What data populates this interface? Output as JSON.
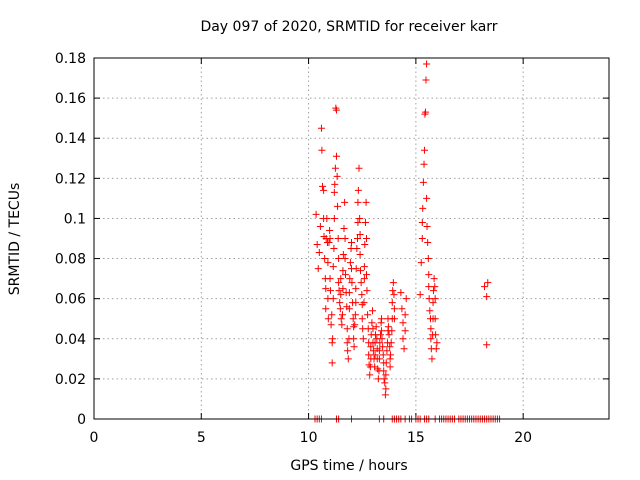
{
  "chart_data": {
    "type": "scatter",
    "title": "Day 097 of 2020, SRMTID for receiver karr",
    "xlabel": "GPS time / hours",
    "ylabel": "SRMTID / TECUs",
    "xlim": [
      0,
      24
    ],
    "ylim": [
      0,
      0.18
    ],
    "xticks": [
      0,
      5,
      10,
      15,
      20
    ],
    "xtick_labels": [
      "0",
      "5",
      "10",
      "15",
      "20"
    ],
    "yticks": [
      0,
      0.02,
      0.04,
      0.06,
      0.08,
      0.1,
      0.12,
      0.14,
      0.16,
      0.18
    ],
    "ytick_labels": [
      "0",
      "0.02",
      "0.04",
      "0.06",
      "0.08",
      "0.1",
      "0.12",
      "0.14",
      "0.16",
      "0.18"
    ],
    "grid": true,
    "marker": "+",
    "color": "#ff0000",
    "series": [
      {
        "name": "SRMTID",
        "points": [
          [
            10.3,
            0.0
          ],
          [
            10.4,
            0.0
          ],
          [
            10.5,
            0.0
          ],
          [
            10.6,
            0.0
          ],
          [
            11.3,
            0.0
          ],
          [
            11.4,
            0.0
          ],
          [
            12.0,
            0.0
          ],
          [
            13.3,
            0.0
          ],
          [
            13.5,
            0.0
          ],
          [
            13.9,
            0.0
          ],
          [
            14.0,
            0.0
          ],
          [
            14.1,
            0.0
          ],
          [
            14.2,
            0.0
          ],
          [
            14.3,
            0.0
          ],
          [
            14.5,
            0.0
          ],
          [
            14.7,
            0.0
          ],
          [
            14.8,
            0.0
          ],
          [
            15.0,
            0.0
          ],
          [
            15.1,
            0.0
          ],
          [
            15.2,
            0.0
          ],
          [
            15.4,
            0.0
          ],
          [
            15.5,
            0.0
          ],
          [
            15.6,
            0.0
          ],
          [
            15.9,
            0.0
          ],
          [
            16.1,
            0.0
          ],
          [
            16.2,
            0.0
          ],
          [
            16.3,
            0.0
          ],
          [
            16.4,
            0.0
          ],
          [
            16.5,
            0.0
          ],
          [
            16.6,
            0.0
          ],
          [
            16.7,
            0.0
          ],
          [
            16.8,
            0.0
          ],
          [
            17.0,
            0.0
          ],
          [
            17.1,
            0.0
          ],
          [
            17.2,
            0.0
          ],
          [
            17.3,
            0.0
          ],
          [
            17.4,
            0.0
          ],
          [
            17.5,
            0.0
          ],
          [
            17.6,
            0.0
          ],
          [
            17.7,
            0.0
          ],
          [
            17.8,
            0.0
          ],
          [
            17.9,
            0.0
          ],
          [
            18.0,
            0.0
          ],
          [
            18.1,
            0.0
          ],
          [
            18.2,
            0.0
          ],
          [
            18.3,
            0.0
          ],
          [
            18.4,
            0.0
          ],
          [
            18.5,
            0.0
          ],
          [
            18.6,
            0.0
          ],
          [
            18.7,
            0.0
          ],
          [
            18.8,
            0.0
          ],
          [
            18.9,
            0.0
          ],
          [
            10.35,
            0.102
          ],
          [
            10.4,
            0.087
          ],
          [
            10.45,
            0.075
          ],
          [
            10.5,
            0.083
          ],
          [
            10.55,
            0.096
          ],
          [
            10.6,
            0.145
          ],
          [
            10.62,
            0.134
          ],
          [
            10.65,
            0.116
          ],
          [
            10.7,
            0.114
          ],
          [
            10.7,
            0.1
          ],
          [
            10.72,
            0.091
          ],
          [
            10.75,
            0.08
          ],
          [
            10.78,
            0.07
          ],
          [
            10.8,
            0.065
          ],
          [
            10.8,
            0.055
          ],
          [
            10.82,
            0.09
          ],
          [
            10.85,
            0.1
          ],
          [
            10.88,
            0.088
          ],
          [
            10.9,
            0.078
          ],
          [
            10.9,
            0.06
          ],
          [
            10.92,
            0.05
          ],
          [
            10.95,
            0.088
          ],
          [
            10.98,
            0.094
          ],
          [
            11.0,
            0.09
          ],
          [
            11.0,
            0.07
          ],
          [
            11.02,
            0.064
          ],
          [
            11.05,
            0.047
          ],
          [
            11.08,
            0.052
          ],
          [
            11.1,
            0.038
          ],
          [
            11.1,
            0.028
          ],
          [
            11.12,
            0.04
          ],
          [
            11.15,
            0.06
          ],
          [
            11.15,
            0.076
          ],
          [
            11.18,
            0.085
          ],
          [
            11.2,
            0.1
          ],
          [
            11.2,
            0.113
          ],
          [
            11.22,
            0.117
          ],
          [
            11.25,
            0.125
          ],
          [
            11.27,
            0.155
          ],
          [
            11.3,
            0.154
          ],
          [
            11.3,
            0.131
          ],
          [
            11.33,
            0.121
          ],
          [
            11.35,
            0.106
          ],
          [
            11.38,
            0.09
          ],
          [
            11.4,
            0.08
          ],
          [
            11.4,
            0.068
          ],
          [
            11.42,
            0.064
          ],
          [
            11.45,
            0.058
          ],
          [
            11.48,
            0.055
          ],
          [
            11.5,
            0.07
          ],
          [
            11.5,
            0.062
          ],
          [
            11.52,
            0.05
          ],
          [
            11.55,
            0.047
          ],
          [
            11.58,
            0.052
          ],
          [
            11.6,
            0.065
          ],
          [
            11.6,
            0.074
          ],
          [
            11.62,
            0.082
          ],
          [
            11.65,
            0.095
          ],
          [
            11.68,
            0.108
          ],
          [
            11.7,
            0.09
          ],
          [
            11.7,
            0.08
          ],
          [
            11.72,
            0.072
          ],
          [
            11.75,
            0.063
          ],
          [
            11.78,
            0.056
          ],
          [
            11.8,
            0.045
          ],
          [
            11.8,
            0.038
          ],
          [
            11.82,
            0.034
          ],
          [
            11.85,
            0.03
          ],
          [
            11.88,
            0.04
          ],
          [
            11.9,
            0.055
          ],
          [
            11.9,
            0.063
          ],
          [
            11.92,
            0.07
          ],
          [
            11.95,
            0.078
          ],
          [
            11.98,
            0.085
          ],
          [
            12.0,
            0.088
          ],
          [
            12.0,
            0.075
          ],
          [
            12.02,
            0.068
          ],
          [
            12.05,
            0.058
          ],
          [
            12.08,
            0.05
          ],
          [
            12.1,
            0.046
          ],
          [
            12.1,
            0.04
          ],
          [
            12.12,
            0.036
          ],
          [
            12.15,
            0.047
          ],
          [
            12.18,
            0.052
          ],
          [
            12.2,
            0.058
          ],
          [
            12.2,
            0.065
          ],
          [
            12.22,
            0.075
          ],
          [
            12.25,
            0.085
          ],
          [
            12.28,
            0.09
          ],
          [
            12.3,
            0.098
          ],
          [
            12.3,
            0.108
          ],
          [
            12.32,
            0.114
          ],
          [
            12.35,
            0.125
          ],
          [
            12.38,
            0.1
          ],
          [
            12.4,
            0.092
          ],
          [
            12.4,
            0.082
          ],
          [
            12.42,
            0.074
          ],
          [
            12.45,
            0.068
          ],
          [
            12.48,
            0.062
          ],
          [
            12.5,
            0.057
          ],
          [
            12.5,
            0.05
          ],
          [
            12.52,
            0.045
          ],
          [
            12.55,
            0.04
          ],
          [
            12.58,
            0.058
          ],
          [
            12.6,
            0.07
          ],
          [
            12.6,
            0.076
          ],
          [
            12.62,
            0.087
          ],
          [
            12.65,
            0.098
          ],
          [
            12.68,
            0.108
          ],
          [
            12.7,
            0.09
          ],
          [
            12.7,
            0.072
          ],
          [
            12.72,
            0.064
          ],
          [
            12.75,
            0.052
          ],
          [
            12.78,
            0.045
          ],
          [
            12.8,
            0.038
          ],
          [
            12.8,
            0.032
          ],
          [
            12.82,
            0.027
          ],
          [
            12.85,
            0.022
          ],
          [
            12.88,
            0.026
          ],
          [
            12.9,
            0.03
          ],
          [
            12.9,
            0.036
          ],
          [
            12.92,
            0.042
          ],
          [
            12.95,
            0.048
          ],
          [
            12.98,
            0.054
          ],
          [
            13.0,
            0.045
          ],
          [
            13.0,
            0.038
          ],
          [
            13.02,
            0.034
          ],
          [
            13.05,
            0.03
          ],
          [
            13.08,
            0.026
          ],
          [
            13.1,
            0.032
          ],
          [
            13.1,
            0.038
          ],
          [
            13.12,
            0.042
          ],
          [
            13.15,
            0.046
          ],
          [
            13.18,
            0.04
          ],
          [
            13.2,
            0.035
          ],
          [
            13.2,
            0.03
          ],
          [
            13.22,
            0.025
          ],
          [
            13.25,
            0.02
          ],
          [
            13.28,
            0.024
          ],
          [
            13.3,
            0.03
          ],
          [
            13.3,
            0.034
          ],
          [
            13.32,
            0.038
          ],
          [
            13.35,
            0.042
          ],
          [
            13.38,
            0.048
          ],
          [
            13.4,
            0.05
          ],
          [
            13.4,
            0.044
          ],
          [
            13.42,
            0.04
          ],
          [
            13.45,
            0.036
          ],
          [
            13.48,
            0.032
          ],
          [
            13.5,
            0.028
          ],
          [
            13.5,
            0.024
          ],
          [
            13.52,
            0.02
          ],
          [
            13.55,
            0.018
          ],
          [
            13.58,
            0.012
          ],
          [
            13.6,
            0.015
          ],
          [
            13.6,
            0.022
          ],
          [
            13.62,
            0.028
          ],
          [
            13.65,
            0.034
          ],
          [
            13.68,
            0.038
          ],
          [
            13.7,
            0.044
          ],
          [
            13.7,
            0.05
          ],
          [
            13.72,
            0.046
          ],
          [
            13.75,
            0.042
          ],
          [
            13.78,
            0.036
          ],
          [
            13.8,
            0.03
          ],
          [
            13.8,
            0.026
          ],
          [
            13.82,
            0.032
          ],
          [
            13.85,
            0.038
          ],
          [
            13.88,
            0.044
          ],
          [
            13.9,
            0.05
          ],
          [
            13.9,
            0.058
          ],
          [
            13.92,
            0.064
          ],
          [
            13.95,
            0.068
          ],
          [
            13.98,
            0.062
          ],
          [
            14.0,
            0.055
          ],
          [
            14.0,
            0.05
          ],
          [
            14.3,
            0.063
          ],
          [
            14.35,
            0.055
          ],
          [
            14.4,
            0.048
          ],
          [
            14.4,
            0.04
          ],
          [
            14.45,
            0.035
          ],
          [
            14.5,
            0.044
          ],
          [
            14.5,
            0.052
          ],
          [
            14.55,
            0.06
          ],
          [
            15.2,
            0.062
          ],
          [
            15.25,
            0.078
          ],
          [
            15.3,
            0.09
          ],
          [
            15.3,
            0.098
          ],
          [
            15.32,
            0.105
          ],
          [
            15.35,
            0.118
          ],
          [
            15.38,
            0.127
          ],
          [
            15.4,
            0.134
          ],
          [
            15.42,
            0.152
          ],
          [
            15.45,
            0.153
          ],
          [
            15.47,
            0.169
          ],
          [
            15.5,
            0.177
          ],
          [
            15.5,
            0.11
          ],
          [
            15.52,
            0.096
          ],
          [
            15.55,
            0.088
          ],
          [
            15.58,
            0.08
          ],
          [
            15.6,
            0.072
          ],
          [
            15.6,
            0.066
          ],
          [
            15.62,
            0.06
          ],
          [
            15.65,
            0.054
          ],
          [
            15.68,
            0.05
          ],
          [
            15.7,
            0.045
          ],
          [
            15.7,
            0.04
          ],
          [
            15.72,
            0.035
          ],
          [
            15.75,
            0.03
          ],
          [
            15.78,
            0.042
          ],
          [
            15.8,
            0.05
          ],
          [
            15.8,
            0.058
          ],
          [
            15.82,
            0.064
          ],
          [
            15.85,
            0.07
          ],
          [
            15.88,
            0.066
          ],
          [
            15.9,
            0.06
          ],
          [
            15.9,
            0.05
          ],
          [
            15.92,
            0.042
          ],
          [
            15.95,
            0.035
          ],
          [
            15.98,
            0.038
          ],
          [
            18.2,
            0.066
          ],
          [
            18.35,
            0.068
          ],
          [
            18.3,
            0.061
          ],
          [
            18.3,
            0.037
          ]
        ]
      }
    ]
  }
}
